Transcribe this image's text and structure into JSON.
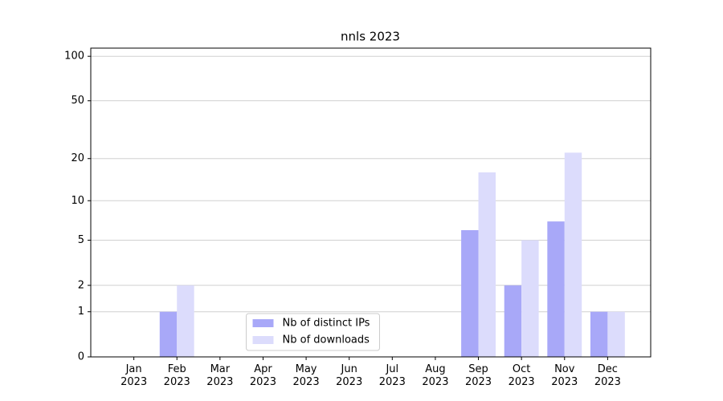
{
  "chart_data": {
    "type": "bar",
    "title": "nnls 2023",
    "categories": [
      "Jan\n2023",
      "Feb\n2023",
      "Mar\n2023",
      "Apr\n2023",
      "May\n2023",
      "Jun\n2023",
      "Jul\n2023",
      "Aug\n2023",
      "Sep\n2023",
      "Oct\n2023",
      "Nov\n2023",
      "Dec\n2023"
    ],
    "series": [
      {
        "name": "Nb of distinct IPs",
        "color": "#a8a8f8",
        "values": [
          0,
          1,
          0,
          0,
          0,
          0,
          0,
          0,
          6,
          2,
          7,
          1
        ]
      },
      {
        "name": "Nb of downloads",
        "color": "#dcdcfc",
        "values": [
          0,
          2,
          0,
          0,
          0,
          0,
          0,
          0,
          16,
          5,
          22,
          1
        ]
      }
    ],
    "scale": "log1p",
    "ylim": [
      0,
      113.5
    ],
    "yticks": [
      0,
      1,
      2,
      5,
      10,
      20,
      50,
      100
    ],
    "grid": true,
    "legend": "lower center"
  }
}
